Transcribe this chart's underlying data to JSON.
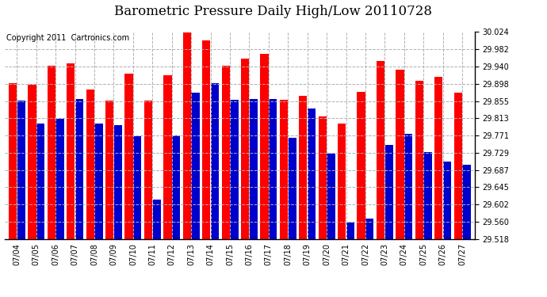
{
  "title": "Barometric Pressure Daily High/Low 20110728",
  "copyright": "Copyright 2011  Cartronics.com",
  "categories": [
    "07/04",
    "07/05",
    "07/06",
    "07/07",
    "07/08",
    "07/09",
    "07/10",
    "07/11",
    "07/12",
    "07/13",
    "07/14",
    "07/15",
    "07/16",
    "07/17",
    "07/18",
    "07/19",
    "07/20",
    "07/21",
    "07/22",
    "07/23",
    "07/24",
    "07/25",
    "07/26",
    "07/27"
  ],
  "highs": [
    29.9,
    29.895,
    29.942,
    29.948,
    29.884,
    29.856,
    29.922,
    29.856,
    29.918,
    30.024,
    30.004,
    29.942,
    29.96,
    29.97,
    29.858,
    29.868,
    29.818,
    29.8,
    29.878,
    29.954,
    29.932,
    29.905,
    29.914,
    29.876
  ],
  "lows": [
    29.856,
    29.8,
    29.812,
    29.86,
    29.8,
    29.796,
    29.77,
    29.614,
    29.772,
    29.876,
    29.9,
    29.858,
    29.86,
    29.86,
    29.766,
    29.838,
    29.726,
    29.558,
    29.568,
    29.748,
    29.776,
    29.73,
    29.708,
    29.7
  ],
  "high_color": "#ff0000",
  "low_color": "#0000cc",
  "bg_color": "#ffffff",
  "grid_color": "#b0b0b0",
  "yticks": [
    29.518,
    29.56,
    29.602,
    29.645,
    29.687,
    29.729,
    29.771,
    29.813,
    29.855,
    29.898,
    29.94,
    29.982,
    30.024
  ],
  "ymin": 29.518,
  "ymax": 30.024,
  "title_fontsize": 12,
  "copyright_fontsize": 7,
  "bar_width": 0.42,
  "bar_gap": 0.02
}
